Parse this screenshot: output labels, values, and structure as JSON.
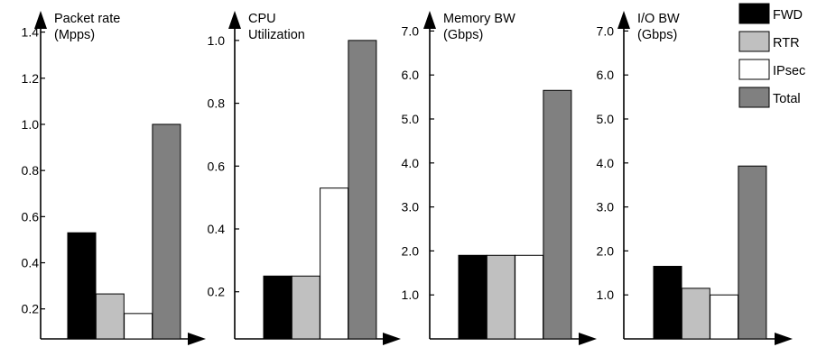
{
  "chart_data": [
    {
      "type": "bar",
      "title": [
        "Packet rate",
        "(Mpps)"
      ],
      "categories": [
        "FWD",
        "RTR",
        "IPsec",
        "Total"
      ],
      "values": [
        0.53,
        0.265,
        0.18,
        1.0
      ],
      "ylim": [
        0.07,
        1.5
      ],
      "yticks": [
        0.2,
        0.4,
        0.6,
        0.8,
        1.0,
        1.2,
        1.4
      ],
      "ytick_labels": [
        "0.2",
        "0.4",
        "0.6",
        "0.8",
        "1.0",
        "1.2",
        "1.4"
      ]
    },
    {
      "type": "bar",
      "title": [
        "CPU",
        "Utilization"
      ],
      "categories": [
        "FWD",
        "RTR",
        "IPsec",
        "Total"
      ],
      "values": [
        0.25,
        0.25,
        0.53,
        1.0
      ],
      "ylim": [
        0.05,
        1.1
      ],
      "yticks": [
        0.2,
        0.4,
        0.6,
        0.8,
        1.0
      ],
      "ytick_labels": [
        "0.2",
        "0.4",
        "0.6",
        "0.8",
        "1.0"
      ]
    },
    {
      "type": "bar",
      "title": [
        "Memory BW",
        "(Gbps)"
      ],
      "categories": [
        "FWD",
        "RTR",
        "IPsec",
        "Total"
      ],
      "values": [
        1.9,
        1.9,
        1.9,
        5.65
      ],
      "ylim": [
        0.0,
        7.5
      ],
      "yticks": [
        1.0,
        2.0,
        3.0,
        4.0,
        5.0,
        6.0,
        7.0
      ],
      "ytick_labels": [
        "1.0",
        "2.0",
        "3.0",
        "4.0",
        "5.0",
        "6.0",
        "7.0"
      ]
    },
    {
      "type": "bar",
      "title": [
        "I/O BW",
        "(Gbps)"
      ],
      "categories": [
        "FWD",
        "RTR",
        "IPsec",
        "Total"
      ],
      "values": [
        1.65,
        1.15,
        1.0,
        3.93
      ],
      "ylim": [
        0.0,
        7.5
      ],
      "yticks": [
        1.0,
        2.0,
        3.0,
        4.0,
        5.0,
        6.0,
        7.0
      ],
      "ytick_labels": [
        "1.0",
        "2.0",
        "3.0",
        "4.0",
        "5.0",
        "6.0",
        "7.0"
      ]
    }
  ],
  "legend": {
    "position": "top-right",
    "items": [
      {
        "label": "FWD",
        "color": "#000000"
      },
      {
        "label": "RTR",
        "color": "#c0c0c0"
      },
      {
        "label": "IPsec",
        "color": "#ffffff"
      },
      {
        "label": "Total",
        "color": "#808080"
      }
    ]
  },
  "colors": {
    "FWD": "#000000",
    "RTR": "#c0c0c0",
    "IPsec": "#ffffff",
    "Total": "#808080",
    "axis": "#000000"
  },
  "grid": false
}
